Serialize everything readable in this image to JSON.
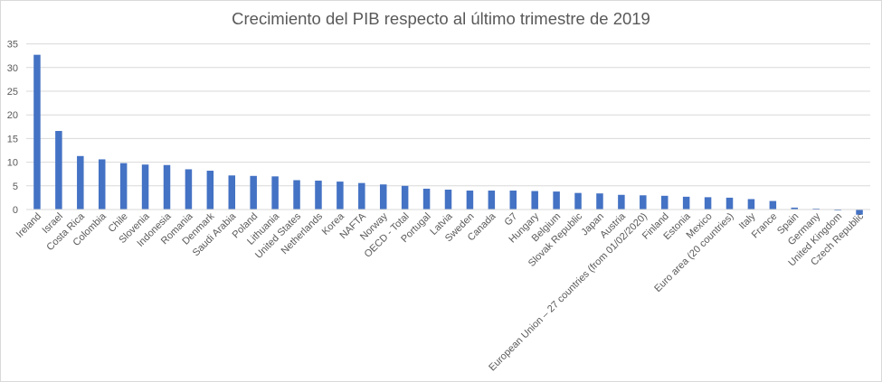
{
  "chart_data": {
    "type": "bar",
    "title": "Crecimiento del PIB respecto al último trimestre de 2019",
    "xlabel": "",
    "ylabel": "",
    "ylim": [
      -5,
      35
    ],
    "yticks": [
      0,
      5,
      10,
      15,
      20,
      25,
      30,
      35
    ],
    "grid": true,
    "legend": "none",
    "bar_color": "#4472C4",
    "categories": [
      "Ireland",
      "Israel",
      "Costa Rica",
      "Colombia",
      "Chile",
      "Slovenia",
      "Indonesia",
      "Romania",
      "Denmark",
      "Saudi Arabia",
      "Poland",
      "Lithuania",
      "United States",
      "Netherlands",
      "Korea",
      "NAFTA",
      "Norway",
      "OECD - Total",
      "Portugal",
      "Latvia",
      "Sweden",
      "Canada",
      "G7",
      "Hungary",
      "Belgium",
      "Slovak Republic",
      "Japan",
      "Austria",
      "European Union – 27 countries (from 01/02/2020)",
      "Finland",
      "Estonia",
      "Mexico",
      "Euro area (20 countries)",
      "Italy",
      "France",
      "Spain",
      "Germany",
      "United Kingdom",
      "Czech Republic"
    ],
    "values": [
      32.7,
      16.6,
      11.3,
      10.6,
      9.8,
      9.5,
      9.4,
      8.5,
      8.2,
      7.2,
      7.1,
      7.0,
      6.2,
      6.1,
      5.9,
      5.6,
      5.3,
      5.0,
      4.4,
      4.2,
      4.0,
      4.0,
      4.0,
      3.9,
      3.8,
      3.5,
      3.4,
      3.1,
      3.0,
      2.9,
      2.7,
      2.6,
      2.5,
      2.2,
      1.8,
      0.4,
      0.2,
      -0.2,
      -1.1
    ]
  }
}
